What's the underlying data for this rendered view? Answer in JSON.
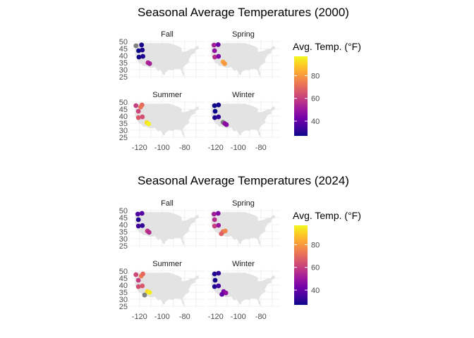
{
  "chart_data": [
    {
      "type": "scatter",
      "title": "Seasonal Average Temperatures (2000)",
      "xlabel": "",
      "ylabel": "",
      "x_ticks": [
        "-120",
        "-100",
        "-80"
      ],
      "y_ticks": [
        "25",
        "30",
        "35",
        "40",
        "45",
        "50"
      ],
      "xlim": [
        -128,
        -63
      ],
      "ylim": [
        24,
        51
      ],
      "legend": {
        "title": "Avg. Temp. (°F)",
        "ticks": [
          "40",
          "60",
          "80"
        ],
        "range": [
          27,
          97
        ],
        "colormap": "plasma",
        "position": "right"
      },
      "facets": [
        {
          "label": "Fall",
          "points": [
            {
              "lon": -123.2,
              "lat": 47.0,
              "temp": null
            },
            {
              "lon": -118.2,
              "lat": 47.6,
              "temp": 28
            },
            {
              "lon": -120.8,
              "lat": 43.5,
              "temp": 27
            },
            {
              "lon": -117.5,
              "lat": 44.0,
              "temp": 29
            },
            {
              "lon": -120.5,
              "lat": 39.0,
              "temp": 28
            },
            {
              "lon": -117.0,
              "lat": 39.5,
              "temp": 30
            },
            {
              "lon": -112.5,
              "lat": 35.0,
              "temp": 55
            },
            {
              "lon": -111.0,
              "lat": 34.3,
              "temp": 52
            }
          ]
        },
        {
          "label": "Spring",
          "points": [
            {
              "lon": -121.5,
              "lat": 47.5,
              "temp": 52
            },
            {
              "lon": -117.8,
              "lat": 47.8,
              "temp": 40
            },
            {
              "lon": -121.0,
              "lat": 43.5,
              "temp": 48
            },
            {
              "lon": -120.8,
              "lat": 39.0,
              "temp": 56
            },
            {
              "lon": -117.5,
              "lat": 39.5,
              "temp": 45
            },
            {
              "lon": -113.5,
              "lat": 35.5,
              "temp": 82
            },
            {
              "lon": -112.0,
              "lat": 34.3,
              "temp": 80
            }
          ]
        },
        {
          "label": "Summer",
          "points": [
            {
              "lon": -123.2,
              "lat": 47.5,
              "temp": 60
            },
            {
              "lon": -117.8,
              "lat": 48.0,
              "temp": 70
            },
            {
              "lon": -119.0,
              "lat": 46.5,
              "temp": 72
            },
            {
              "lon": -121.0,
              "lat": 43.5,
              "temp": 62
            },
            {
              "lon": -121.0,
              "lat": 39.0,
              "temp": 66
            },
            {
              "lon": -117.5,
              "lat": 39.5,
              "temp": 64
            },
            {
              "lon": -113.5,
              "lat": 35.5,
              "temp": 92
            },
            {
              "lon": -111.8,
              "lat": 34.5,
              "temp": 96
            }
          ]
        },
        {
          "label": "Winter",
          "points": [
            {
              "lon": -121.0,
              "lat": 47.5,
              "temp": 27
            },
            {
              "lon": -117.5,
              "lat": 48.0,
              "temp": 28
            },
            {
              "lon": -120.5,
              "lat": 43.5,
              "temp": 27
            },
            {
              "lon": -120.8,
              "lat": 39.0,
              "temp": 29
            },
            {
              "lon": -117.5,
              "lat": 39.5,
              "temp": 32
            },
            {
              "lon": -113.5,
              "lat": 35.7,
              "temp": null
            },
            {
              "lon": -112.0,
              "lat": 34.8,
              "temp": 48
            },
            {
              "lon": -110.5,
              "lat": 34.0,
              "temp": 46
            }
          ]
        }
      ]
    },
    {
      "type": "scatter",
      "title": "Seasonal Average Temperatures (2024)",
      "xlabel": "",
      "ylabel": "",
      "x_ticks": [
        "-120",
        "-100",
        "-80"
      ],
      "y_ticks": [
        "25",
        "30",
        "35",
        "40",
        "45",
        "50"
      ],
      "xlim": [
        -128,
        -63
      ],
      "ylim": [
        24,
        51
      ],
      "legend": {
        "title": "Avg. Temp. (°F)",
        "ticks": [
          "40",
          "60",
          "80"
        ],
        "range": [
          27,
          97
        ],
        "colormap": "plasma",
        "position": "right"
      },
      "facets": [
        {
          "label": "Fall",
          "points": [
            {
              "lon": -121.5,
              "lat": 47.5,
              "temp": 36
            },
            {
              "lon": -117.8,
              "lat": 48.0,
              "temp": 38
            },
            {
              "lon": -121.0,
              "lat": 43.5,
              "temp": 30
            },
            {
              "lon": -121.0,
              "lat": 39.0,
              "temp": 34
            },
            {
              "lon": -117.5,
              "lat": 39.3,
              "temp": 32
            },
            {
              "lon": -113.0,
              "lat": 35.5,
              "temp": 58
            },
            {
              "lon": -111.5,
              "lat": 34.5,
              "temp": 55
            }
          ]
        },
        {
          "label": "Spring",
          "points": [
            {
              "lon": -121.5,
              "lat": 47.5,
              "temp": 52
            },
            {
              "lon": -117.8,
              "lat": 48.0,
              "temp": 45
            },
            {
              "lon": -121.0,
              "lat": 43.5,
              "temp": 56
            },
            {
              "lon": -121.0,
              "lat": 39.0,
              "temp": 60
            },
            {
              "lon": -117.5,
              "lat": 39.5,
              "temp": 50
            },
            {
              "lon": -113.5,
              "lat": 35.0,
              "temp": 72
            },
            {
              "lon": -111.5,
              "lat": 35.5,
              "temp": 76
            },
            {
              "lon": -115.0,
              "lat": 33.5,
              "temp": 68
            }
          ]
        },
        {
          "label": "Summer",
          "points": [
            {
              "lon": -123.2,
              "lat": 47.5,
              "temp": 62
            },
            {
              "lon": -118.5,
              "lat": 46.5,
              "temp": 74
            },
            {
              "lon": -117.0,
              "lat": 48.0,
              "temp": 70
            },
            {
              "lon": -121.0,
              "lat": 43.5,
              "temp": 60
            },
            {
              "lon": -121.0,
              "lat": 39.0,
              "temp": 64
            },
            {
              "lon": -117.5,
              "lat": 39.5,
              "temp": 66
            },
            {
              "lon": -113.0,
              "lat": 35.5,
              "temp": 92
            },
            {
              "lon": -111.0,
              "lat": 34.8,
              "temp": 95
            },
            {
              "lon": -115.5,
              "lat": 33.0,
              "temp": null
            }
          ]
        },
        {
          "label": "Winter",
          "points": [
            {
              "lon": -121.0,
              "lat": 48.0,
              "temp": 30
            },
            {
              "lon": -117.5,
              "lat": 48.5,
              "temp": 32
            },
            {
              "lon": -120.5,
              "lat": 43.5,
              "temp": 28
            },
            {
              "lon": -121.0,
              "lat": 39.0,
              "temp": 30
            },
            {
              "lon": -117.5,
              "lat": 39.5,
              "temp": 34
            },
            {
              "lon": -113.0,
              "lat": 35.5,
              "temp": 44
            },
            {
              "lon": -111.0,
              "lat": 34.5,
              "temp": 48
            },
            {
              "lon": -114.5,
              "lat": 33.5,
              "temp": 40
            }
          ]
        }
      ]
    }
  ]
}
